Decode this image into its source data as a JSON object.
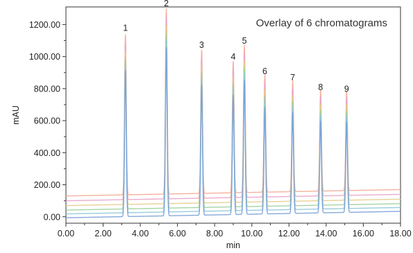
{
  "chart_data": {
    "type": "line",
    "annotation": "Overlay of 6 chromatograms",
    "xlabel": "min",
    "ylabel": "mAU",
    "xlim": [
      0,
      18
    ],
    "ylim": [
      -40,
      1310
    ],
    "x_ticks": [
      "0.00",
      "2.00",
      "4.00",
      "6.00",
      "8.00",
      "10.00",
      "12.00",
      "14.00",
      "16.00",
      "18.00"
    ],
    "y_ticks": [
      "0.00",
      "200.00",
      "400.00",
      "600.00",
      "800.00",
      "1000.00",
      "1200.00"
    ],
    "peaks": [
      {
        "label": "1",
        "time": 3.2,
        "height": 1000
      },
      {
        "label": "2",
        "time": 5.4,
        "height": 1155
      },
      {
        "label": "3",
        "time": 7.3,
        "height": 895
      },
      {
        "label": "4",
        "time": 9.0,
        "height": 820
      },
      {
        "label": "5",
        "time": 9.6,
        "height": 920
      },
      {
        "label": "6",
        "time": 10.7,
        "height": 730
      },
      {
        "label": "7",
        "time": 12.2,
        "height": 690
      },
      {
        "label": "8",
        "time": 13.7,
        "height": 630
      },
      {
        "label": "9",
        "time": 15.1,
        "height": 620
      }
    ],
    "series": [
      {
        "color": "#f4a994",
        "baseline_start": 130,
        "baseline_end": 170,
        "scale": 1.0
      },
      {
        "color": "#e8a3c8",
        "baseline_start": 100,
        "baseline_end": 140,
        "scale": 0.98
      },
      {
        "color": "#e4cc8a",
        "baseline_start": 70,
        "baseline_end": 110,
        "scale": 0.96
      },
      {
        "color": "#9ccf9a",
        "baseline_start": 42,
        "baseline_end": 82,
        "scale": 0.94
      },
      {
        "color": "#8ec8d8",
        "baseline_start": 18,
        "baseline_end": 58,
        "scale": 0.93
      },
      {
        "color": "#7aa0d8",
        "baseline_start": -6,
        "baseline_end": 34,
        "scale": 0.91
      }
    ]
  }
}
